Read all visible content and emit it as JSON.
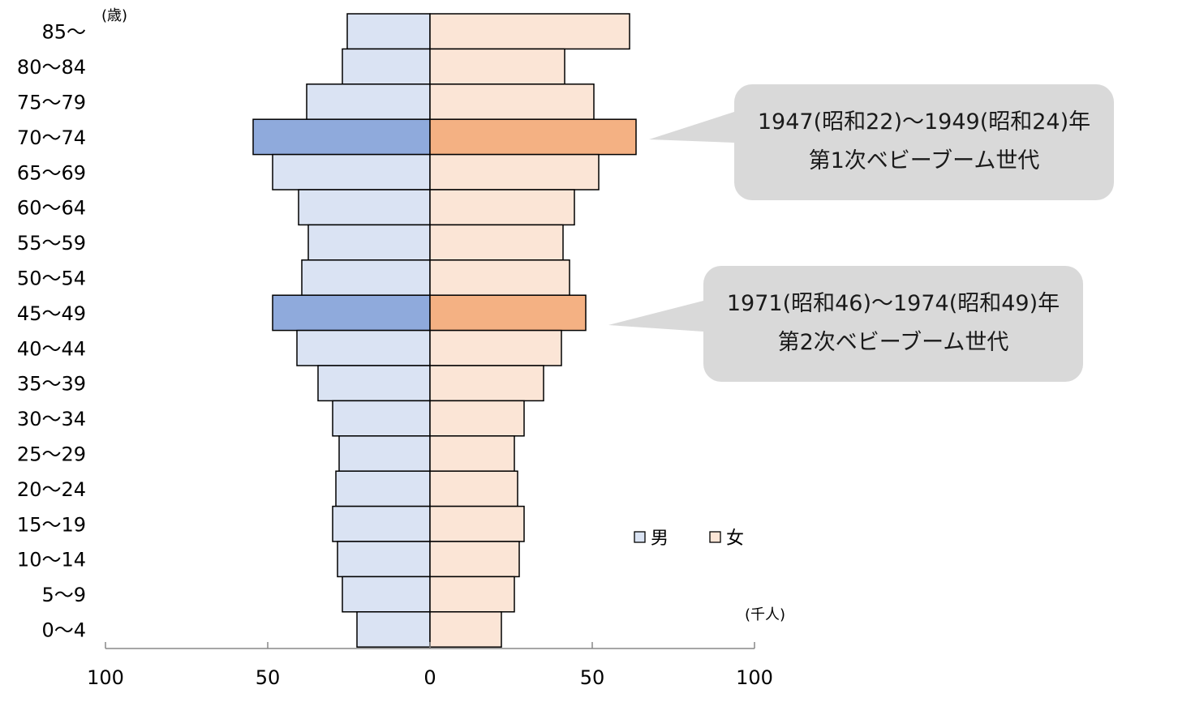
{
  "chart_data": {
    "type": "bar",
    "subtype": "population-pyramid",
    "y_unit": "(歳)",
    "x_unit": "(千人)",
    "xlim": [
      -100,
      100
    ],
    "x_ticks": [
      {
        "value": -100,
        "label": "100"
      },
      {
        "value": -50,
        "label": "50"
      },
      {
        "value": 0,
        "label": "0"
      },
      {
        "value": 50,
        "label": "50"
      },
      {
        "value": 100,
        "label": "100"
      }
    ],
    "categories": [
      "85～",
      "80～84",
      "75～79",
      "70～74",
      "65～69",
      "60～64",
      "55～59",
      "50～54",
      "45～49",
      "40～44",
      "35～39",
      "30～34",
      "25～29",
      "20～24",
      "15～19",
      "10～14",
      "5～9",
      "0～4"
    ],
    "series": [
      {
        "name": "男",
        "color": "#dae3f3",
        "highlight_color": "#8faadc",
        "values": [
          25.5,
          27,
          38,
          54.5,
          48.5,
          40.5,
          37.5,
          39.5,
          48.5,
          41,
          34.5,
          30,
          28,
          29,
          30,
          28.5,
          27,
          22.5
        ]
      },
      {
        "name": "女",
        "color": "#fbe5d6",
        "highlight_color": "#f4b183",
        "values": [
          61.5,
          41.5,
          50.5,
          63.5,
          52,
          44.5,
          41,
          43,
          48,
          40.5,
          35,
          29,
          26,
          27,
          29,
          27.5,
          26,
          22
        ]
      }
    ],
    "highlighted_categories": [
      "70～74",
      "45～49"
    ],
    "legend": {
      "position": "center-right"
    }
  },
  "callouts": [
    {
      "line1": "1947(昭和22)～1949(昭和24)年",
      "line2": "第1次ベビーブーム世代"
    },
    {
      "line1": "1971(昭和46)～1974(昭和49)年",
      "line2": "第2次ベビーブーム世代"
    }
  ]
}
